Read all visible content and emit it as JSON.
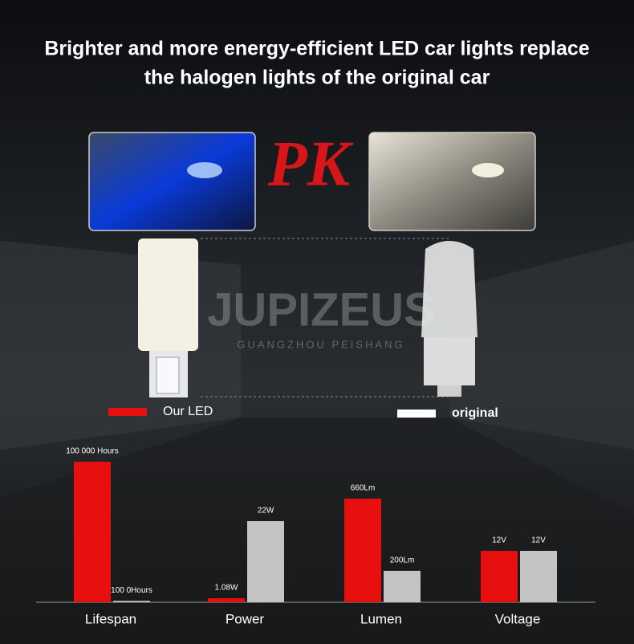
{
  "headline": [
    "Brighter and more energy-efficient LED car lights replace",
    "the halogen lights of the original car"
  ],
  "versus": "PK",
  "watermark": {
    "brand": "JUPIZEUS",
    "sub": "GUANGZHOU PEISHANG"
  },
  "chart_data": {
    "type": "bar",
    "categories": [
      "Lifespan",
      "Power",
      "Lumen",
      "Voltage"
    ],
    "series": [
      {
        "name": "Our LED",
        "color": "#e8100f",
        "values": [
          100000,
          1.08,
          660,
          12
        ],
        "value_labels": [
          "100 000 Hours",
          "1.08W",
          "660Lm",
          "12V"
        ]
      },
      {
        "name": "original",
        "color": "#c4c4c4",
        "values": [
          1000,
          22,
          200,
          12
        ],
        "value_labels": [
          "100 0Hours",
          "22W",
          "200Lm",
          "12V"
        ]
      }
    ]
  }
}
